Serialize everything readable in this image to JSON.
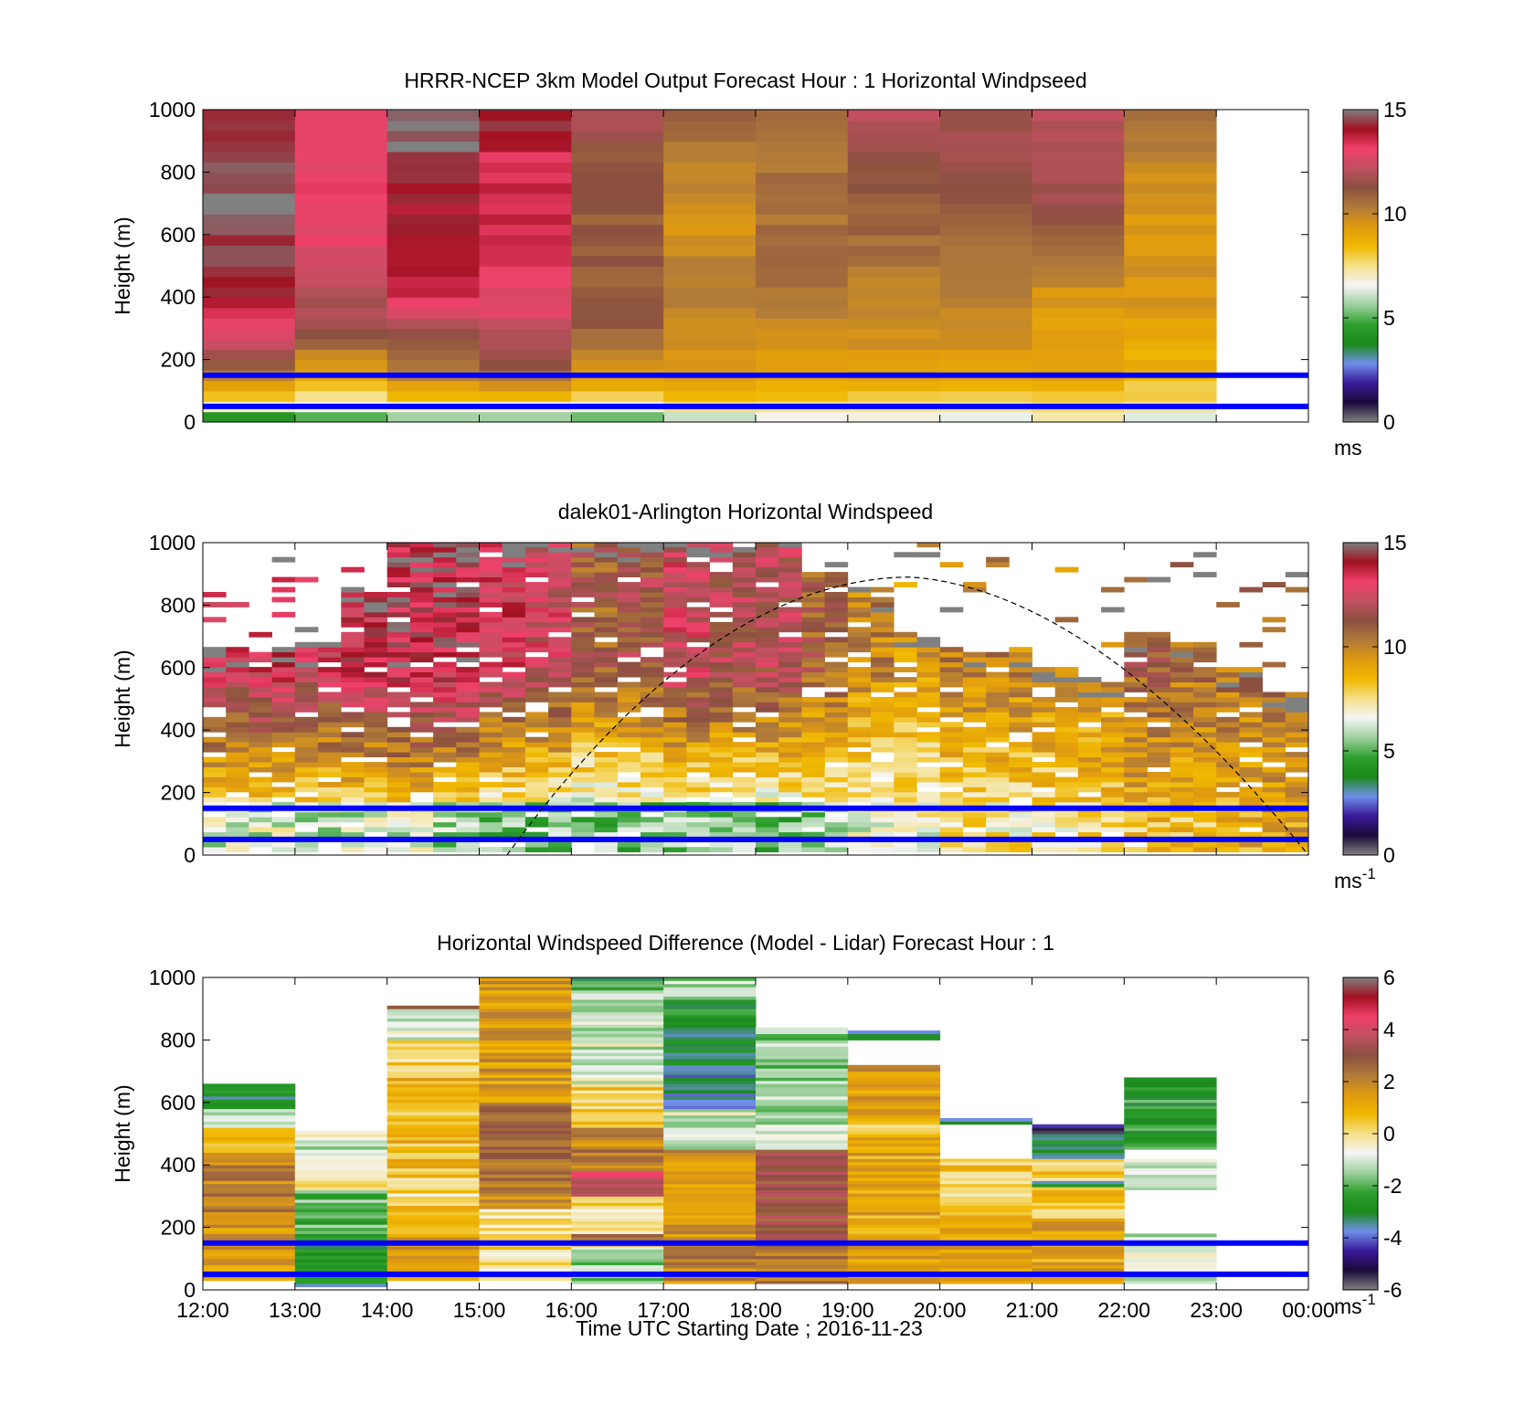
{
  "figure": {
    "xlabel": "Time UTC  Starting Date ; 2016-11-23",
    "x_ticks": [
      "12:00",
      "13:00",
      "14:00",
      "15:00",
      "16:00",
      "17:00",
      "18:00",
      "19:00",
      "20:00",
      "21:00",
      "22:00",
      "23:00",
      "00:00"
    ]
  },
  "colormap": {
    "name": "gray-purple-blue-green-white-yellow-orange-brown-pink-red-gray",
    "stops": [
      "#808080",
      "#1a0a3a",
      "#3a1a9a",
      "#6f8fe8",
      "#1a8a1a",
      "#2ea02e",
      "#9fd09f",
      "#f5f5f5",
      "#f5e08a",
      "#f0b800",
      "#e09a10",
      "#b07a3a",
      "#8a5040",
      "#c05060",
      "#f0406a",
      "#a01020",
      "#808080"
    ]
  },
  "chart_data": [
    {
      "type": "heatmap",
      "title": "HRRR-NCEP 3km Model Output   Forecast Hour : 1 Horizontal Windpseed",
      "ylabel": "Height (m)",
      "xlim": [
        12,
        24
      ],
      "ylim": [
        0,
        1000
      ],
      "y_ticks": [
        "0",
        "200",
        "400",
        "600",
        "800",
        "1000"
      ],
      "colorbar": {
        "min": 0,
        "max": 15,
        "ticks": [
          "0",
          "5",
          "10",
          "15"
        ],
        "unit": "ms"
      },
      "reference_lines_m": [
        50,
        150
      ],
      "reference_line_color": "#0000ff",
      "columns": [
        {
          "t0": 12,
          "t1": 13,
          "profile": [
            [
              0,
              4
            ],
            [
              30,
              5
            ],
            [
              60,
              7.5
            ],
            [
              100,
              9
            ],
            [
              150,
              10
            ],
            [
              200,
              11.5
            ],
            [
              270,
              12.5
            ],
            [
              330,
              13
            ],
            [
              400,
              14
            ],
            [
              500,
              14.5
            ],
            [
              600,
              14.5
            ],
            [
              700,
              15
            ],
            [
              800,
              14.5
            ],
            [
              1000,
              14
            ]
          ]
        },
        {
          "t0": 13,
          "t1": 14,
          "profile": [
            [
              0,
              4.5
            ],
            [
              40,
              6
            ],
            [
              80,
              7.5
            ],
            [
              140,
              9
            ],
            [
              220,
              10
            ],
            [
              300,
              11.5
            ],
            [
              400,
              12
            ],
            [
              500,
              12.5
            ],
            [
              600,
              13
            ],
            [
              700,
              13
            ],
            [
              800,
              13
            ],
            [
              1000,
              13
            ]
          ]
        },
        {
          "t0": 14,
          "t1": 15,
          "profile": [
            [
              0,
              5
            ],
            [
              40,
              6.5
            ],
            [
              90,
              8.5
            ],
            [
              150,
              10
            ],
            [
              250,
              11
            ],
            [
              330,
              12
            ],
            [
              400,
              13.5
            ],
            [
              500,
              14
            ],
            [
              600,
              14
            ],
            [
              700,
              14
            ],
            [
              800,
              14.5
            ],
            [
              1000,
              15
            ]
          ]
        },
        {
          "t0": 15,
          "t1": 16,
          "profile": [
            [
              0,
              5
            ],
            [
              40,
              6.5
            ],
            [
              100,
              9
            ],
            [
              180,
              11
            ],
            [
              280,
              12
            ],
            [
              350,
              13
            ],
            [
              450,
              13
            ],
            [
              550,
              13.5
            ],
            [
              650,
              13.5
            ],
            [
              750,
              13.5
            ],
            [
              850,
              13.5
            ],
            [
              1000,
              14.5
            ]
          ]
        },
        {
          "t0": 16,
          "t1": 17,
          "profile": [
            [
              0,
              5
            ],
            [
              40,
              6
            ],
            [
              100,
              8.5
            ],
            [
              200,
              10
            ],
            [
              300,
              11
            ],
            [
              500,
              11
            ],
            [
              700,
              11
            ],
            [
              850,
              11
            ],
            [
              1000,
              12
            ]
          ]
        },
        {
          "t0": 17,
          "t1": 18,
          "profile": [
            [
              0,
              5.5
            ],
            [
              40,
              7
            ],
            [
              100,
              9
            ],
            [
              200,
              9.5
            ],
            [
              350,
              10
            ],
            [
              500,
              10
            ],
            [
              650,
              9.5
            ],
            [
              800,
              10
            ],
            [
              1000,
              11
            ]
          ]
        },
        {
          "t0": 18,
          "t1": 19,
          "profile": [
            [
              0,
              6
            ],
            [
              50,
              7.5
            ],
            [
              120,
              9
            ],
            [
              250,
              9.5
            ],
            [
              400,
              10.5
            ],
            [
              550,
              10.5
            ],
            [
              700,
              10.5
            ],
            [
              850,
              10.5
            ],
            [
              1000,
              11
            ]
          ]
        },
        {
          "t0": 19,
          "t1": 20,
          "profile": [
            [
              0,
              6
            ],
            [
              50,
              7.5
            ],
            [
              120,
              9
            ],
            [
              250,
              9.5
            ],
            [
              400,
              10
            ],
            [
              550,
              10.5
            ],
            [
              700,
              11
            ],
            [
              850,
              11.5
            ],
            [
              1000,
              12
            ]
          ]
        },
        {
          "t0": 20,
          "t1": 21,
          "profile": [
            [
              0,
              6
            ],
            [
              50,
              7.5
            ],
            [
              120,
              9
            ],
            [
              250,
              9.5
            ],
            [
              400,
              10
            ],
            [
              550,
              10.5
            ],
            [
              700,
              11
            ],
            [
              850,
              11.5
            ],
            [
              1000,
              11.5
            ]
          ]
        },
        {
          "t0": 21,
          "t1": 22,
          "profile": [
            [
              0,
              6.5
            ],
            [
              60,
              8
            ],
            [
              130,
              9
            ],
            [
              250,
              9
            ],
            [
              400,
              9.5
            ],
            [
              550,
              10.5
            ],
            [
              700,
              11.5
            ],
            [
              850,
              12
            ],
            [
              1000,
              12
            ]
          ]
        },
        {
          "t0": 22,
          "t1": 23,
          "profile": [
            [
              0,
              6
            ],
            [
              60,
              7.5
            ],
            [
              150,
              8.5
            ],
            [
              250,
              9
            ],
            [
              400,
              9.5
            ],
            [
              550,
              9.5
            ],
            [
              700,
              9.5
            ],
            [
              850,
              10
            ],
            [
              1000,
              10.5
            ]
          ]
        }
      ]
    },
    {
      "type": "heatmap",
      "title": "dalek01-Arlington  Horizontal Windspeed",
      "ylabel": "Height (m)",
      "xlim": [
        12,
        24
      ],
      "ylim": [
        0,
        1000
      ],
      "y_ticks": [
        "0",
        "200",
        "400",
        "600",
        "800",
        "1000"
      ],
      "colorbar": {
        "min": 0,
        "max": 15,
        "ticks": [
          "0",
          "5",
          "10",
          "15"
        ],
        "unit": "ms-1"
      },
      "reference_lines_m": [
        50,
        150
      ],
      "reference_line_color": "#0000ff",
      "sun_curve": {
        "t_start": 15.3,
        "t_end": 24,
        "peak_t": 19.7,
        "peak_m": 890
      },
      "profiles": [
        {
          "t": 12.0,
          "top": 650,
          "low": 6,
          "high": 13
        },
        {
          "t": 12.5,
          "top": 640,
          "low": 6,
          "high": 13.5
        },
        {
          "t": 13.0,
          "top": 670,
          "low": 6,
          "high": 13
        },
        {
          "t": 13.5,
          "top": 850,
          "low": 6,
          "high": 13.5
        },
        {
          "t": 14.0,
          "top": 1000,
          "low": 6,
          "high": 14
        },
        {
          "t": 14.5,
          "top": 1000,
          "low": 5.5,
          "high": 14
        },
        {
          "t": 15.0,
          "top": 1000,
          "low": 5,
          "high": 13
        },
        {
          "t": 15.5,
          "top": 1000,
          "low": 5,
          "high": 12.5
        },
        {
          "t": 16.0,
          "top": 1000,
          "low": 5,
          "high": 11
        },
        {
          "t": 16.5,
          "top": 1000,
          "low": 5,
          "high": 11.5
        },
        {
          "t": 17.0,
          "top": 1000,
          "low": 5,
          "high": 12.5
        },
        {
          "t": 17.5,
          "top": 1000,
          "low": 5,
          "high": 12
        },
        {
          "t": 18.0,
          "top": 1000,
          "low": 5,
          "high": 12
        },
        {
          "t": 18.5,
          "top": 900,
          "low": 5.5,
          "high": 11
        },
        {
          "t": 19.0,
          "top": 850,
          "low": 6,
          "high": 10
        },
        {
          "t": 19.5,
          "top": 700,
          "low": 6.5,
          "high": 9.5
        },
        {
          "t": 20.0,
          "top": 660,
          "low": 7,
          "high": 10
        },
        {
          "t": 20.5,
          "top": 650,
          "low": 7,
          "high": 10
        },
        {
          "t": 21.0,
          "top": 600,
          "low": 7,
          "high": 10
        },
        {
          "t": 21.5,
          "top": 560,
          "low": 7.5,
          "high": 10
        },
        {
          "t": 22.0,
          "top": 700,
          "low": 8,
          "high": 11
        },
        {
          "t": 22.5,
          "top": 680,
          "low": 8,
          "high": 10.5
        },
        {
          "t": 23.0,
          "top": 600,
          "low": 8.5,
          "high": 10.5
        },
        {
          "t": 23.5,
          "top": 520,
          "low": 9,
          "high": 10.5
        }
      ]
    },
    {
      "type": "heatmap",
      "title": "Horizontal Windspeed Difference (Model - Lidar) Forecast Hour : 1",
      "ylabel": "Height (m)",
      "xlim": [
        12,
        24
      ],
      "ylim": [
        0,
        1000
      ],
      "y_ticks": [
        "0",
        "200",
        "400",
        "600",
        "800",
        "1000"
      ],
      "colorbar": {
        "min": -6,
        "max": 6,
        "ticks": [
          "-6",
          "-4",
          "-2",
          "0",
          "2",
          "4",
          "6"
        ],
        "unit": "ms-1"
      },
      "reference_lines_m": [
        50,
        150
      ],
      "reference_line_color": "#0000ff",
      "columns": [
        {
          "t0": 12,
          "t1": 13,
          "segments": [
            [
              30,
              200,
              1.5
            ],
            [
              200,
              420,
              2
            ],
            [
              420,
              520,
              1
            ],
            [
              520,
              580,
              -1
            ],
            [
              580,
              660,
              -3
            ]
          ]
        },
        {
          "t0": 13,
          "t1": 14,
          "segments": [
            [
              10,
              150,
              -3
            ],
            [
              150,
              320,
              -2
            ],
            [
              320,
              420,
              -0.3
            ],
            [
              420,
              510,
              -1
            ]
          ]
        },
        {
          "t0": 14,
          "t1": 15,
          "segments": [
            [
              30,
              180,
              1.5
            ],
            [
              180,
              300,
              0.5
            ],
            [
              300,
              360,
              0
            ],
            [
              360,
              700,
              0.8
            ],
            [
              700,
              800,
              0.2
            ],
            [
              800,
              900,
              -1
            ],
            [
              900,
              910,
              2.5
            ]
          ]
        },
        {
          "t0": 15,
          "t1": 16,
          "segments": [
            [
              30,
              260,
              0
            ],
            [
              260,
              310,
              1.5
            ],
            [
              310,
              600,
              2.5
            ],
            [
              600,
              1000,
              1.5
            ]
          ]
        },
        {
          "t0": 16,
          "t1": 17,
          "segments": [
            [
              20,
              140,
              -1.5
            ],
            [
              140,
              180,
              2
            ],
            [
              180,
              300,
              0
            ],
            [
              300,
              380,
              4
            ],
            [
              380,
              520,
              2
            ],
            [
              520,
              660,
              0.5
            ],
            [
              660,
              860,
              -1
            ],
            [
              860,
              960,
              -1.5
            ],
            [
              960,
              1000,
              -2.5
            ]
          ]
        },
        {
          "t0": 17,
          "t1": 18,
          "segments": [
            [
              20,
              150,
              2
            ],
            [
              150,
              450,
              1.5
            ],
            [
              450,
              580,
              -1
            ],
            [
              580,
              700,
              -3.5
            ],
            [
              700,
              860,
              -3
            ],
            [
              860,
              930,
              -2.5
            ],
            [
              930,
              1000,
              -1.5
            ]
          ]
        },
        {
          "t0": 18,
          "t1": 19,
          "segments": [
            [
              20,
              150,
              2.5
            ],
            [
              150,
              450,
              3
            ],
            [
              450,
              620,
              -1.2
            ],
            [
              620,
              840,
              -1.5
            ]
          ]
        },
        {
          "t0": 19,
          "t1": 20,
          "segments": [
            [
              20,
              500,
              1.2
            ],
            [
              500,
              540,
              0
            ],
            [
              540,
              700,
              1.3
            ],
            [
              700,
              720,
              2.5
            ],
            [
              800,
              830,
              -3
            ]
          ]
        },
        {
          "t0": 20,
          "t1": 21,
          "segments": [
            [
              20,
              240,
              1.2
            ],
            [
              240,
              330,
              0
            ],
            [
              330,
              420,
              0.5
            ],
            [
              530,
              550,
              -3
            ]
          ]
        },
        {
          "t0": 21,
          "t1": 22,
          "segments": [
            [
              20,
              230,
              1.2
            ],
            [
              230,
              330,
              0.5
            ],
            [
              330,
              350,
              -3
            ],
            [
              350,
              420,
              0.3
            ],
            [
              420,
              500,
              -3
            ],
            [
              500,
              530,
              -5
            ]
          ]
        },
        {
          "t0": 22,
          "t1": 23,
          "segments": [
            [
              20,
              180,
              -1
            ],
            [
              320,
              420,
              -1.2
            ],
            [
              450,
              500,
              -2
            ],
            [
              500,
              680,
              -2.5
            ]
          ]
        }
      ]
    }
  ]
}
